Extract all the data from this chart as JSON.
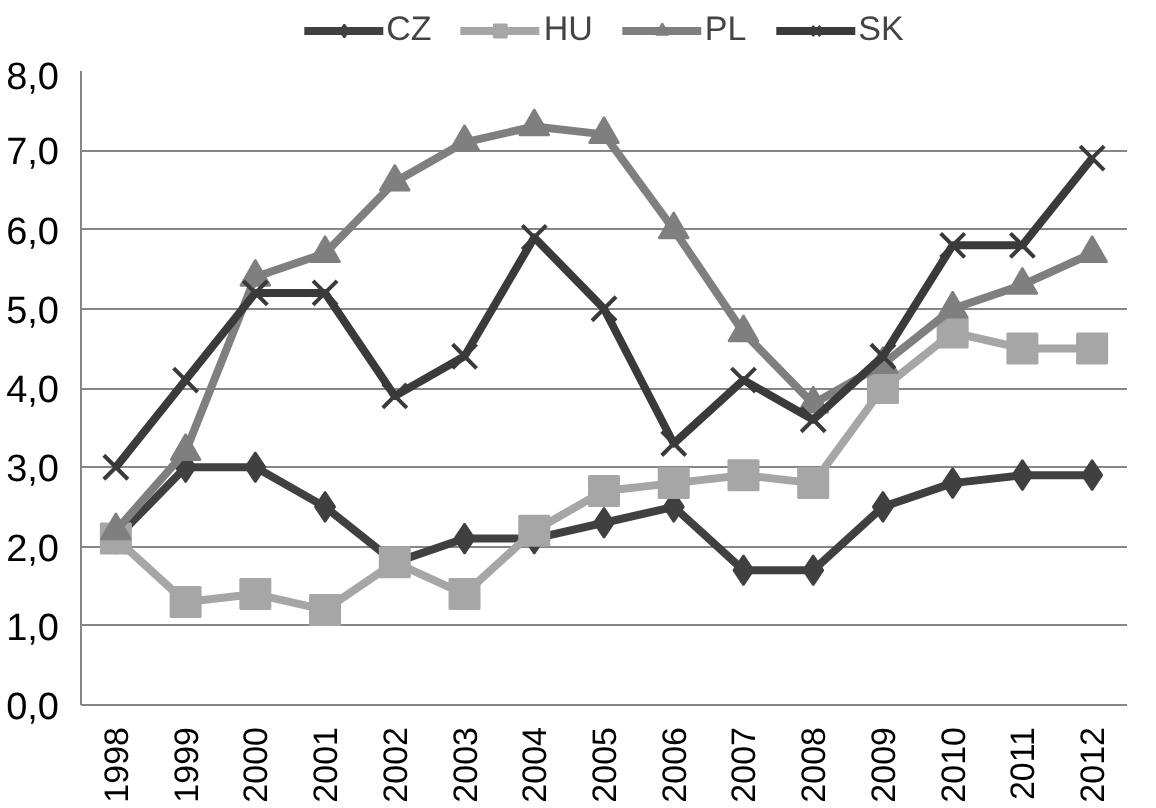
{
  "chart_data": {
    "type": "line",
    "categories": [
      "1998",
      "1999",
      "2000",
      "2001",
      "2002",
      "2003",
      "2004",
      "2005",
      "2006",
      "2007",
      "2008",
      "2009",
      "2010",
      "2011",
      "2012"
    ],
    "series": [
      {
        "name": "CZ",
        "color": "#404040",
        "marker": "diamond",
        "values": [
          2.1,
          3.0,
          3.0,
          2.5,
          1.8,
          2.1,
          2.1,
          2.3,
          2.5,
          1.7,
          1.7,
          2.5,
          2.8,
          2.9,
          2.9
        ]
      },
      {
        "name": "HU",
        "color": "#a6a6a6",
        "marker": "square",
        "values": [
          2.1,
          1.3,
          1.4,
          1.2,
          1.8,
          1.4,
          2.2,
          2.7,
          2.8,
          2.9,
          2.8,
          4.0,
          4.7,
          4.5,
          4.5
        ]
      },
      {
        "name": "PL",
        "color": "#7f7f7f",
        "marker": "triangle",
        "values": [
          2.2,
          3.2,
          5.4,
          5.7,
          6.6,
          7.1,
          7.3,
          7.2,
          6.0,
          4.7,
          3.8,
          4.3,
          5.0,
          5.3,
          5.7
        ]
      },
      {
        "name": "SK",
        "color": "#3a3a3a",
        "marker": "cross",
        "values": [
          3.0,
          4.1,
          5.2,
          5.2,
          3.9,
          4.4,
          5.9,
          5.0,
          3.3,
          4.1,
          3.6,
          4.4,
          5.8,
          5.8,
          6.9
        ]
      }
    ],
    "ylim": [
      0,
      8
    ],
    "yticks": [
      {
        "value": 0,
        "label": "0,0"
      },
      {
        "value": 1,
        "label": "1,0"
      },
      {
        "value": 2,
        "label": "2,0"
      },
      {
        "value": 3,
        "label": "3,0"
      },
      {
        "value": 4,
        "label": "4,0"
      },
      {
        "value": 5,
        "label": "5,0"
      },
      {
        "value": 6,
        "label": "6,0"
      },
      {
        "value": 7,
        "label": "7,0"
      },
      {
        "value": 8,
        "label": "8,0"
      }
    ],
    "grid": "y",
    "legend": "top"
  }
}
